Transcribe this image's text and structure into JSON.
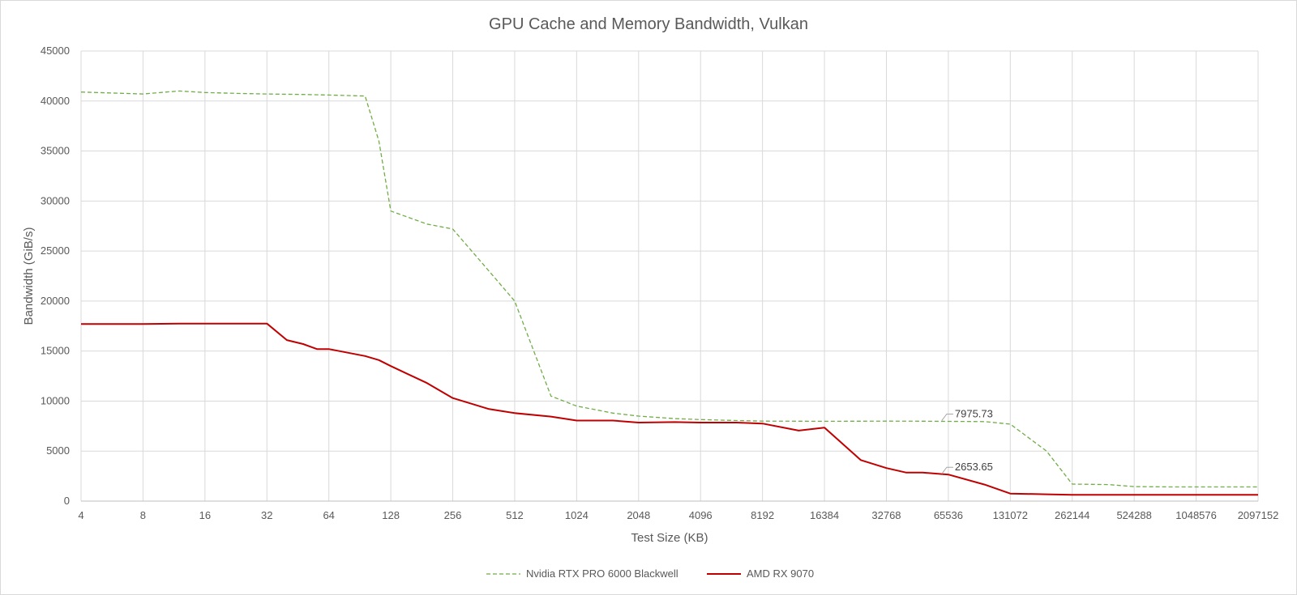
{
  "chart_data": {
    "type": "line",
    "title": "GPU Cache and Memory Bandwidth, Vulkan",
    "xlabel": "Test Size (KB)",
    "ylabel": "Bandwidth (GiB/s)",
    "x_scale": "log2",
    "xlim": [
      4,
      2097152
    ],
    "ylim": [
      0,
      45000
    ],
    "x_ticks": [
      "4",
      "8",
      "16",
      "32",
      "64",
      "128",
      "256",
      "512",
      "1024",
      "2048",
      "4096",
      "8192",
      "16384",
      "32768",
      "65536",
      "131072",
      "262144",
      "524288",
      "1048576",
      "2097152"
    ],
    "y_ticks": [
      "0",
      "5000",
      "10000",
      "15000",
      "20000",
      "25000",
      "30000",
      "35000",
      "40000",
      "45000"
    ],
    "grid": true,
    "legend_position": "bottom",
    "series": [
      {
        "name": "Nvidia RTX PRO 6000 Blackwell",
        "color": "#70ad47",
        "dash": "dashed",
        "x": [
          4,
          8,
          12,
          16,
          24,
          32,
          48,
          64,
          96,
          112,
          128,
          192,
          256,
          384,
          512,
          768,
          1024,
          1536,
          2048,
          3072,
          4096,
          6144,
          8192,
          12288,
          16384,
          24576,
          32768,
          49152,
          65536,
          98304,
          131072,
          196608,
          262144,
          393216,
          524288,
          786432,
          1048576,
          1572864,
          2097152
        ],
        "y": [
          40900,
          40700,
          41000,
          40850,
          40750,
          40700,
          40650,
          40600,
          40500,
          36000,
          29000,
          27700,
          27200,
          23000,
          20000,
          10500,
          9500,
          8800,
          8500,
          8250,
          8150,
          8050,
          8000,
          7990,
          7980,
          7990,
          8000,
          7990,
          7975.73,
          7950,
          7700,
          5000,
          1700,
          1650,
          1450,
          1420,
          1420,
          1420,
          1420
        ]
      },
      {
        "name": "AMD RX 9070",
        "color": "#c00000",
        "dash": "solid",
        "x": [
          4,
          8,
          12,
          16,
          24,
          32,
          40,
          48,
          56,
          64,
          96,
          112,
          128,
          192,
          256,
          384,
          512,
          768,
          1024,
          1536,
          2048,
          3072,
          4096,
          6144,
          8192,
          12288,
          16384,
          24576,
          32768,
          40960,
          49152,
          65536,
          98304,
          131072,
          196608,
          262144,
          393216,
          524288,
          786432,
          1048576,
          1572864,
          2097152
        ],
        "y": [
          17700,
          17700,
          17750,
          17750,
          17750,
          17750,
          16100,
          15700,
          15200,
          15200,
          14500,
          14100,
          13500,
          11800,
          10300,
          9200,
          8800,
          8450,
          8050,
          8050,
          7850,
          7900,
          7850,
          7850,
          7750,
          7050,
          7350,
          4100,
          3300,
          2850,
          2850,
          2653.65,
          1650,
          750,
          680,
          620,
          620,
          620,
          620,
          620,
          620,
          620
        ]
      }
    ],
    "annotations": [
      {
        "text": "7975.73",
        "x": 65536,
        "y": 7975.73,
        "series": "Nvidia RTX PRO 6000 Blackwell"
      },
      {
        "text": "2653.65",
        "x": 65536,
        "y": 2653.65,
        "series": "AMD RX 9070"
      }
    ]
  }
}
